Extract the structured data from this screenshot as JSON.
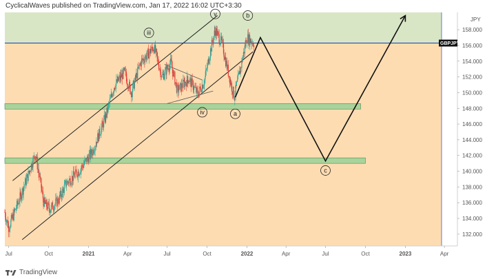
{
  "header": {
    "publisher_text": "CyclicalWaves published on TradingView.com, Jan 17, 2022 16:02 UTC+3:30"
  },
  "footer": {
    "brand": "TradingView"
  },
  "colors": {
    "background_zone": "#fddcb2",
    "upper_zone": "#d9e6c5",
    "support_band": "#a9d39a",
    "support_band_border": "#4f8a4f",
    "candle_up": "#26a69a",
    "candle_down": "#e53935",
    "price_line": "#1f3aa6",
    "projection": "#111111"
  },
  "chart_data": {
    "type": "candlestick",
    "symbol": "GBPJPY",
    "y_unit": "JPY",
    "ylim": [
      130.5,
      160.2
    ],
    "y_ticks": [
      "132.000",
      "134.000",
      "136.000",
      "138.000",
      "140.000",
      "142.000",
      "144.000",
      "146.000",
      "148.000",
      "150.000",
      "152.000",
      "154.000",
      "156.000",
      "158.000"
    ],
    "x_range": [
      "2020-06-22",
      "2023-05-01"
    ],
    "x_ticks": [
      {
        "label": "Jul",
        "date": "2020-07-01"
      },
      {
        "label": "Oct",
        "date": "2020-10-01"
      },
      {
        "label": "2021",
        "date": "2021-01-01"
      },
      {
        "label": "Apr",
        "date": "2021-04-01"
      },
      {
        "label": "Jul",
        "date": "2021-07-01"
      },
      {
        "label": "Oct",
        "date": "2021-10-01"
      },
      {
        "label": "2022",
        "date": "2022-01-01"
      },
      {
        "label": "Apr",
        "date": "2022-04-01"
      },
      {
        "label": "Jul",
        "date": "2022-07-01"
      },
      {
        "label": "Oct",
        "date": "2022-10-01"
      },
      {
        "label": "2023",
        "date": "2023-01-01"
      },
      {
        "label": "Apr",
        "date": "2023-04-01"
      }
    ],
    "current_price": 156.3,
    "price_path": [
      {
        "date": "2020-06-22",
        "price": 134.8
      },
      {
        "date": "2020-07-01",
        "price": 132.8
      },
      {
        "date": "2020-07-20",
        "price": 135.6
      },
      {
        "date": "2020-08-15",
        "price": 139.5
      },
      {
        "date": "2020-09-01",
        "price": 142.3
      },
      {
        "date": "2020-09-20",
        "price": 136.0
      },
      {
        "date": "2020-10-05",
        "price": 135.2
      },
      {
        "date": "2020-10-25",
        "price": 136.4
      },
      {
        "date": "2020-11-10",
        "price": 138.4
      },
      {
        "date": "2020-12-10",
        "price": 140.0
      },
      {
        "date": "2021-01-10",
        "price": 142.5
      },
      {
        "date": "2021-02-10",
        "price": 147.0
      },
      {
        "date": "2021-03-01",
        "price": 150.8
      },
      {
        "date": "2021-03-25",
        "price": 152.6
      },
      {
        "date": "2021-04-10",
        "price": 150.0
      },
      {
        "date": "2021-05-01",
        "price": 153.8
      },
      {
        "date": "2021-06-01",
        "price": 155.8
      },
      {
        "date": "2021-06-20",
        "price": 152.0
      },
      {
        "date": "2021-07-10",
        "price": 153.8
      },
      {
        "date": "2021-07-25",
        "price": 150.2
      },
      {
        "date": "2021-08-20",
        "price": 151.8
      },
      {
        "date": "2021-09-10",
        "price": 149.8
      },
      {
        "date": "2021-09-25",
        "price": 151.5
      },
      {
        "date": "2021-10-10",
        "price": 155.5
      },
      {
        "date": "2021-10-20",
        "price": 158.0
      },
      {
        "date": "2021-11-05",
        "price": 156.2
      },
      {
        "date": "2021-11-20",
        "price": 152.4
      },
      {
        "date": "2021-12-03",
        "price": 149.5
      },
      {
        "date": "2021-12-15",
        "price": 152.5
      },
      {
        "date": "2022-01-01",
        "price": 157.0
      },
      {
        "date": "2022-01-17",
        "price": 156.3
      }
    ],
    "projection_path": [
      {
        "date": "2021-12-05",
        "price": 149.4
      },
      {
        "date": "2022-02-01",
        "price": 157.0
      },
      {
        "date": "2022-07-01",
        "price": 141.3
      },
      {
        "date": "2023-01-01",
        "price": 159.8
      }
    ],
    "channel_lines": [
      {
        "from": {
          "date": "2020-07-10",
          "price": 138.8
        },
        "to": {
          "date": "2021-10-25",
          "price": 159.8
        }
      },
      {
        "from": {
          "date": "2020-08-01",
          "price": 131.3
        },
        "to": {
          "date": "2022-01-15",
          "price": 155.2
        }
      }
    ],
    "triangle_lines": [
      {
        "from": {
          "date": "2021-06-25",
          "price": 153.6
        },
        "to": {
          "date": "2021-09-20",
          "price": 151.6
        }
      },
      {
        "from": {
          "date": "2021-07-01",
          "price": 148.6
        },
        "to": {
          "date": "2021-10-15",
          "price": 150.2
        }
      }
    ],
    "support_zones": [
      {
        "from_date": "2020-06-22",
        "to_date": "2022-09-20",
        "low": 147.9,
        "high": 148.6
      },
      {
        "from_date": "2020-06-22",
        "to_date": "2022-10-01",
        "low": 141.0,
        "high": 141.7
      }
    ],
    "resistance_zone": {
      "low": 156.3,
      "high": 160.2
    },
    "wave_labels": [
      {
        "label": "iii",
        "date": "2021-05-20",
        "price": 157.6
      },
      {
        "label": "iv",
        "date": "2021-09-20",
        "price": 147.5
      },
      {
        "label": "v",
        "date": "2021-10-20",
        "price": 160.0
      },
      {
        "label": "a",
        "date": "2021-12-05",
        "price": 147.3
      },
      {
        "label": "b",
        "date": "2022-01-03",
        "price": 159.8
      },
      {
        "label": "c",
        "date": "2022-07-01",
        "price": 140.1
      }
    ]
  }
}
